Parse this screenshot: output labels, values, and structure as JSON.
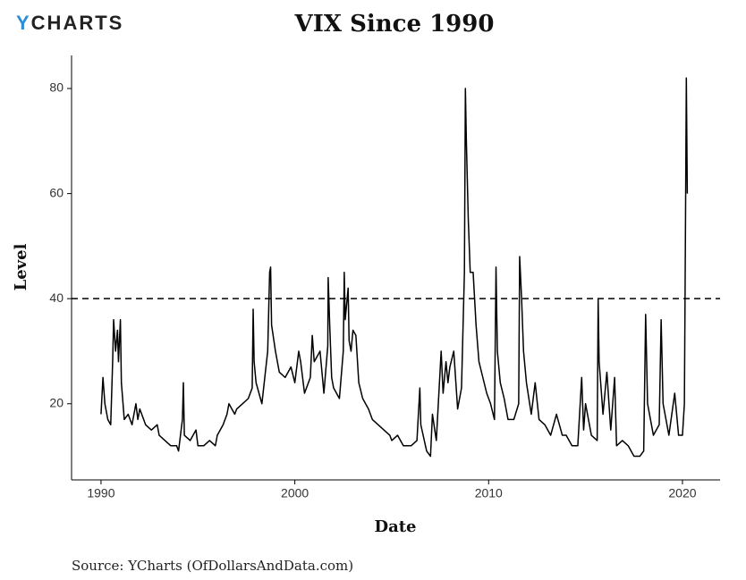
{
  "logo": "YCHARTS",
  "source": "Source: YCharts (OfDollarsAndData.com)",
  "chart_data": {
    "type": "line",
    "title": "VIX Since 1990",
    "x_label": "Date",
    "y_label": "Level",
    "color": "#000000",
    "hline": 40,
    "hline_style": "dashed",
    "xlim": [
      1988.48,
      2021.94
    ],
    "ylim": [
      5.5,
      86.3
    ],
    "xticks": [
      1990,
      2000,
      2010,
      2020
    ],
    "yticks": [
      20,
      40,
      60,
      80
    ],
    "grid": false,
    "x": [
      1990.0,
      1990.1,
      1990.2,
      1990.35,
      1990.5,
      1990.6,
      1990.65,
      1990.75,
      1990.85,
      1990.9,
      1991.0,
      1991.05,
      1991.2,
      1991.4,
      1991.6,
      1991.8,
      1991.9,
      1992.0,
      1992.3,
      1992.6,
      1992.9,
      1993.0,
      1993.3,
      1993.6,
      1993.9,
      1994.0,
      1994.2,
      1994.25,
      1994.3,
      1994.6,
      1994.9,
      1995.0,
      1995.3,
      1995.6,
      1995.9,
      1996.0,
      1996.3,
      1996.5,
      1996.6,
      1996.9,
      1997.0,
      1997.3,
      1997.6,
      1997.8,
      1997.85,
      1997.9,
      1998.0,
      1998.3,
      1998.6,
      1998.7,
      1998.75,
      1998.8,
      1999.0,
      1999.2,
      1999.5,
      1999.8,
      2000.0,
      2000.2,
      2000.3,
      2000.5,
      2000.8,
      2000.9,
      2001.0,
      2001.3,
      2001.5,
      2001.7,
      2001.72,
      2001.8,
      2001.9,
      2002.0,
      2002.3,
      2002.5,
      2002.55,
      2002.6,
      2002.75,
      2002.8,
      2002.9,
      2003.0,
      2003.15,
      2003.3,
      2003.5,
      2003.8,
      2004.0,
      2004.3,
      2004.6,
      2004.9,
      2005.0,
      2005.3,
      2005.6,
      2005.9,
      2006.0,
      2006.3,
      2006.45,
      2006.5,
      2006.8,
      2007.0,
      2007.1,
      2007.3,
      2007.55,
      2007.65,
      2007.8,
      2007.9,
      2008.0,
      2008.2,
      2008.4,
      2008.6,
      2008.75,
      2008.8,
      2008.85,
      2008.95,
      2009.05,
      2009.2,
      2009.35,
      2009.5,
      2009.7,
      2009.9,
      2010.1,
      2010.3,
      2010.38,
      2010.45,
      2010.6,
      2010.8,
      2011.0,
      2011.3,
      2011.55,
      2011.6,
      2011.7,
      2011.8,
      2011.95,
      2012.2,
      2012.4,
      2012.6,
      2012.9,
      2013.2,
      2013.5,
      2013.8,
      2014.0,
      2014.3,
      2014.6,
      2014.8,
      2014.9,
      2015.0,
      2015.3,
      2015.6,
      2015.65,
      2015.7,
      2015.9,
      2016.1,
      2016.3,
      2016.5,
      2016.6,
      2016.9,
      2017.2,
      2017.5,
      2017.8,
      2018.0,
      2018.1,
      2018.2,
      2018.5,
      2018.8,
      2018.9,
      2019.0,
      2019.3,
      2019.6,
      2019.8,
      2020.0,
      2020.1,
      2020.15,
      2020.2,
      2020.25
    ],
    "values": [
      18,
      25,
      20,
      17,
      16,
      28,
      36,
      30,
      34,
      28,
      36,
      24,
      17,
      18,
      16,
      20,
      17,
      19,
      16,
      15,
      16,
      14,
      13,
      12,
      12,
      11,
      17,
      24,
      14,
      13,
      15,
      12,
      12,
      13,
      12,
      14,
      16,
      18,
      20,
      18,
      19,
      20,
      21,
      23,
      38,
      28,
      24,
      20,
      30,
      45,
      46,
      35,
      30,
      26,
      25,
      27,
      24,
      30,
      28,
      22,
      25,
      33,
      28,
      30,
      22,
      31,
      44,
      35,
      25,
      23,
      21,
      30,
      45,
      36,
      42,
      32,
      30,
      34,
      33,
      24,
      21,
      19,
      17,
      16,
      15,
      14,
      13,
      14,
      12,
      12,
      12,
      13,
      23,
      16,
      11,
      10,
      18,
      13,
      30,
      22,
      28,
      24,
      27,
      30,
      19,
      23,
      45,
      80,
      70,
      55,
      45,
      45,
      35,
      28,
      25,
      22,
      20,
      17,
      46,
      30,
      24,
      21,
      17,
      17,
      20,
      48,
      40,
      30,
      24,
      18,
      24,
      17,
      16,
      14,
      18,
      14,
      14,
      12,
      12,
      25,
      15,
      20,
      14,
      13,
      40,
      28,
      18,
      26,
      15,
      25,
      12,
      13,
      12,
      10,
      10,
      11,
      37,
      20,
      14,
      16,
      36,
      20,
      14,
      22,
      14,
      14,
      20,
      50,
      82,
      60
    ]
  }
}
